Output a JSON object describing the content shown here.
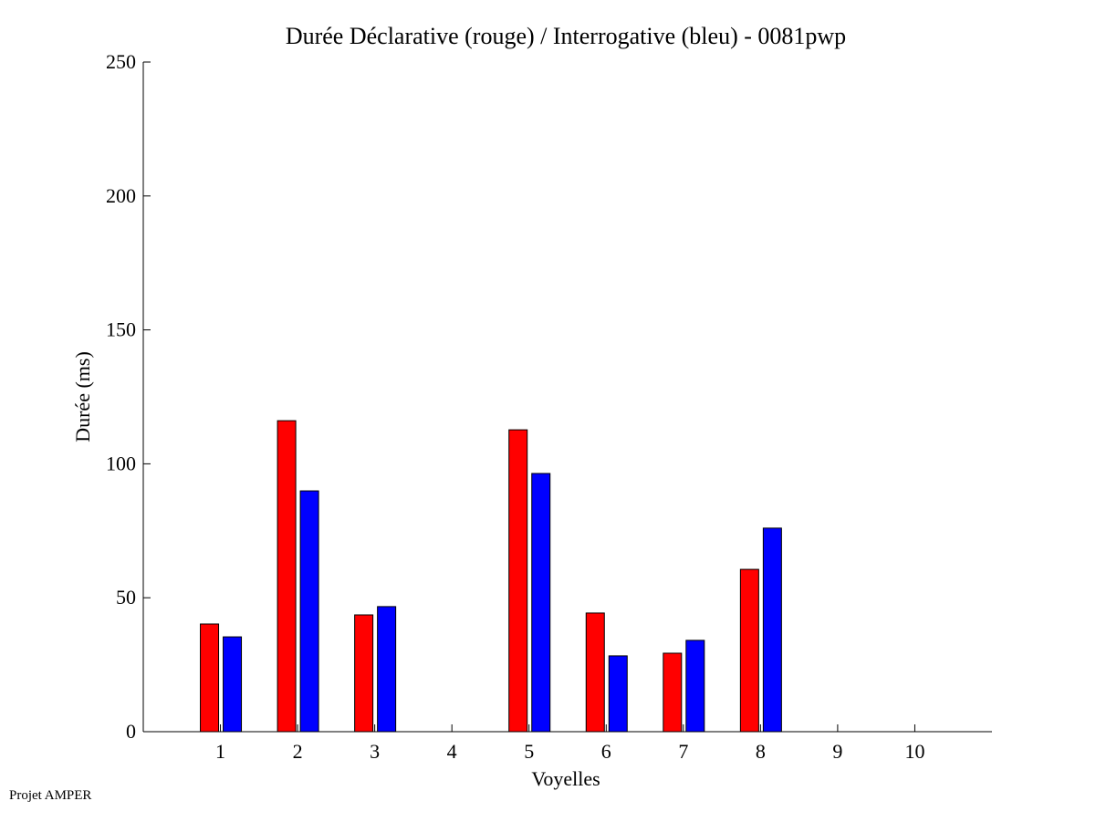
{
  "chart_data": {
    "type": "bar",
    "title": "Durée Déclarative (rouge) / Interrogative (bleu) - 0081pwp",
    "xlabel": "Voyelles",
    "ylabel": "Durée (ms)",
    "ylim": [
      0,
      250
    ],
    "xlim": [
      0,
      11
    ],
    "yticks": [
      0,
      50,
      100,
      150,
      200,
      250
    ],
    "categories": [
      "1",
      "2",
      "3",
      "4",
      "5",
      "6",
      "7",
      "8",
      "9",
      "10"
    ],
    "series": [
      {
        "name": "Déclarative",
        "color": "#ff0000",
        "values": [
          40.2,
          116.1,
          43.6,
          null,
          112.7,
          44.3,
          29.3,
          60.6,
          null,
          null
        ]
      },
      {
        "name": "Interrogative",
        "color": "#0000ff",
        "values": [
          35.4,
          89.9,
          46.7,
          null,
          96.4,
          28.3,
          34.1,
          76.0,
          null,
          null
        ]
      }
    ],
    "grid": false
  },
  "footer": "Projet AMPER"
}
